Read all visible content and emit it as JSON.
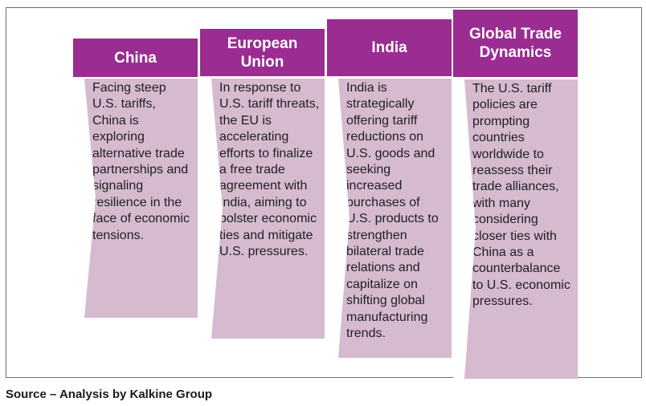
{
  "columns": [
    {
      "title": "China",
      "text": "Facing steep U.S. tariffs, China is exploring alternative trade partnerships and signaling resilience in the face of economic tensions."
    },
    {
      "title": "European Union",
      "text": "In response to U.S. tariff threats, the EU is accelerating efforts to finalize a free trade agreement with India, aiming to bolster economic ties and mitigate U.S. pressures."
    },
    {
      "title": "India",
      "text": "India is strategically offering tariff reductions on U.S. goods and seeking increased purchases of U.S. products to strengthen bilateral trade relations and capitalize on shifting global manufacturing trends."
    },
    {
      "title": "Global Trade Dynamics",
      "text": "The U.S. tariff policies are prompting countries worldwide to reassess their trade alliances, with many considering closer ties with China as a counterbalance to U.S. economic pressures."
    }
  ],
  "source": "Source – Analysis by Kalkine Group",
  "colors": {
    "header": "#9a2c92",
    "body": "#d5bad0"
  }
}
